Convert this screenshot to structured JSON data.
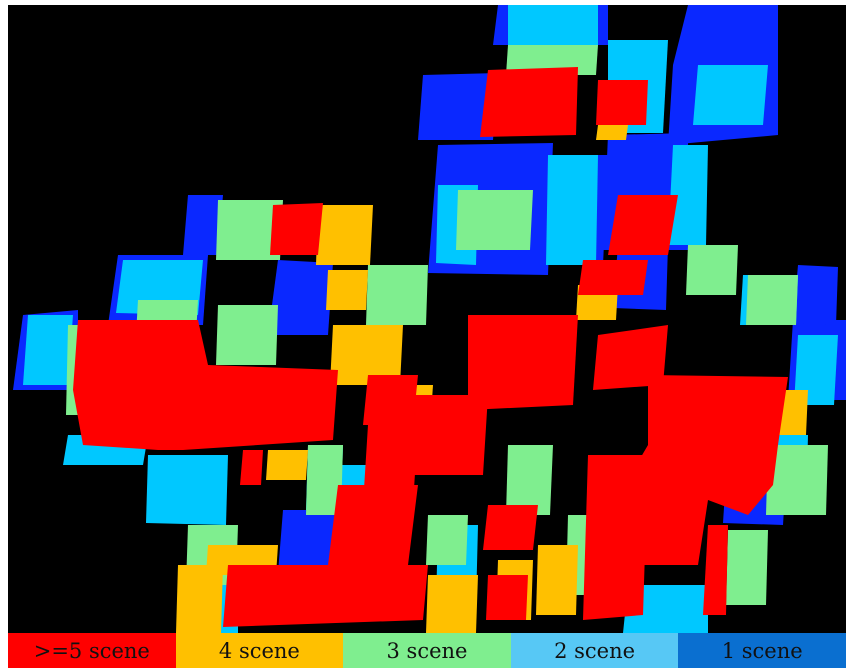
{
  "colors": {
    "background": "#000000",
    "c5": "#ff0000",
    "c4": "#ffc000",
    "c3": "#7fee8f",
    "c2": "#00c8ff",
    "c1": "#0a28ff"
  },
  "legend": [
    {
      "label": ">=5 scene",
      "color": "#ff0000"
    },
    {
      "label": "4 scene",
      "color": "#ffc000"
    },
    {
      "label": "3 scene",
      "color": "#7fee8f"
    },
    {
      "label": "2 scene",
      "color": "#57c8f5"
    },
    {
      "label": "1 scene",
      "color": "#0a6fd0"
    }
  ]
}
